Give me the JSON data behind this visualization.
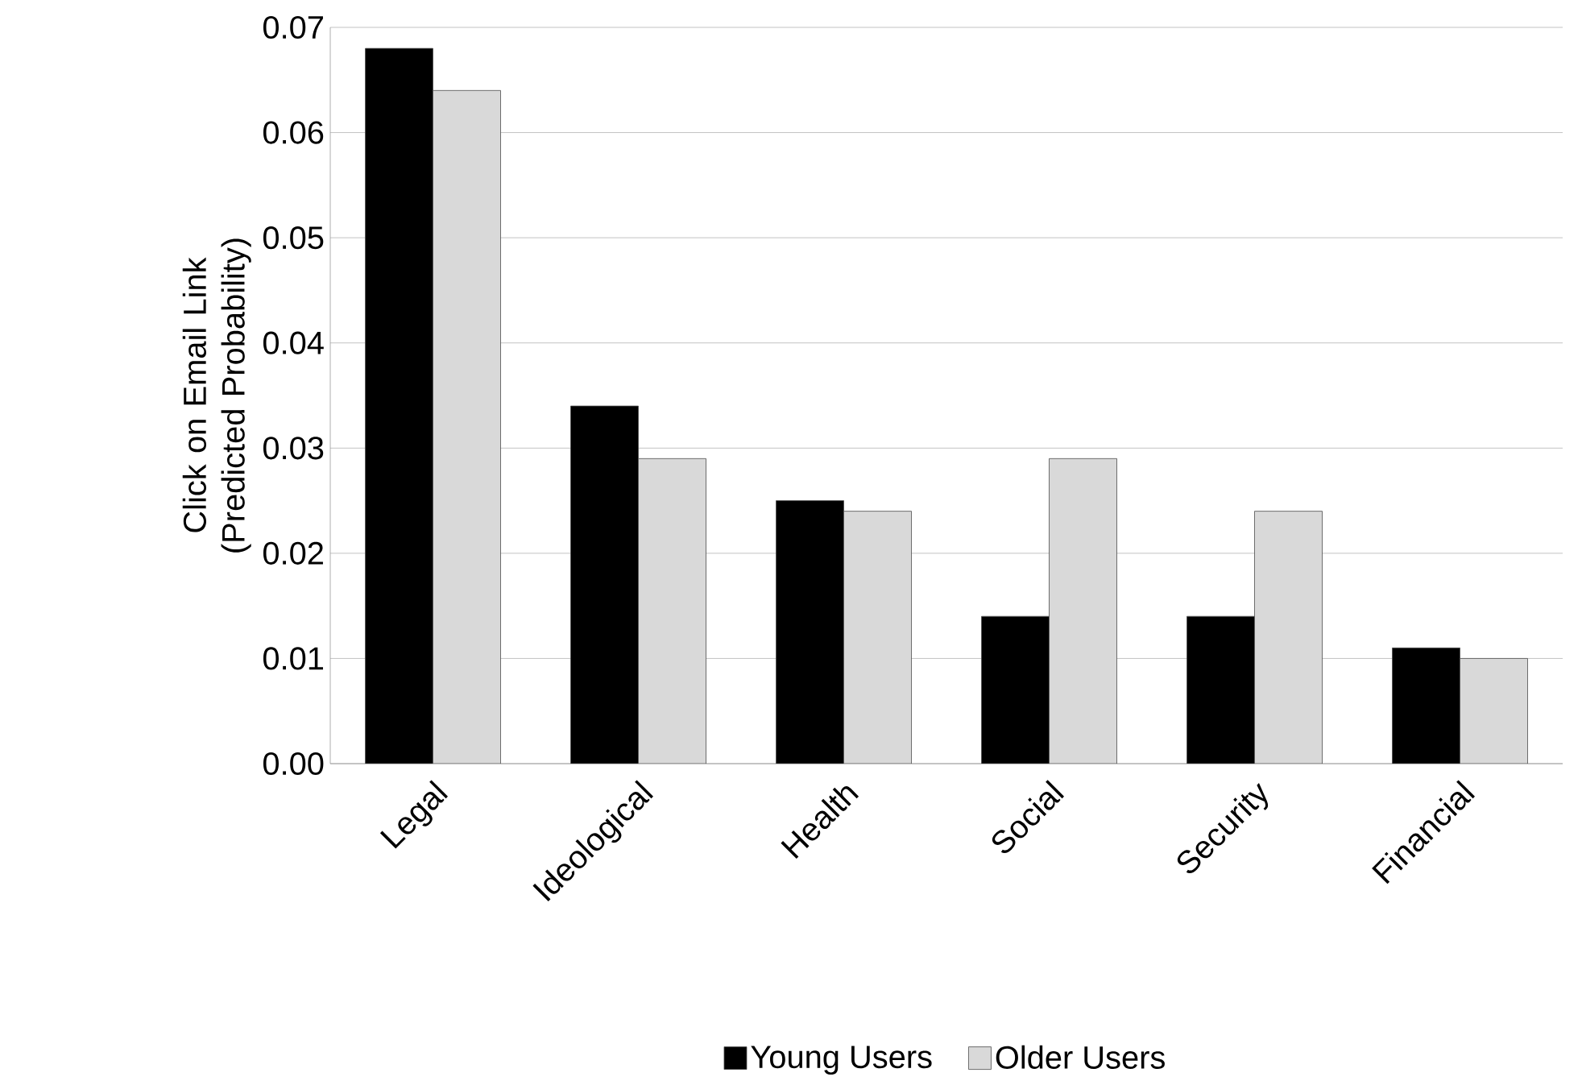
{
  "chart_data": {
    "type": "bar",
    "ylabel": "Click on Email Link (Predicted Probability)",
    "categories": [
      "Legal",
      "Ideological",
      "Health",
      "Social",
      "Security",
      "Financial"
    ],
    "series": [
      {
        "name": "Young Users",
        "color": "#000000",
        "values": [
          0.068,
          0.034,
          0.025,
          0.014,
          0.014,
          0.011
        ]
      },
      {
        "name": "Older Users",
        "color": "#d9d9d9",
        "values": [
          0.064,
          0.029,
          0.024,
          0.029,
          0.024,
          0.01
        ]
      }
    ],
    "ylim": [
      0,
      0.07
    ],
    "yticks": [
      {
        "value": 0,
        "label": "0.00"
      },
      0.01,
      0.02,
      0.03,
      0.04,
      0.05,
      0.06,
      0.07
    ],
    "grid": "y",
    "legend": "bottom"
  }
}
